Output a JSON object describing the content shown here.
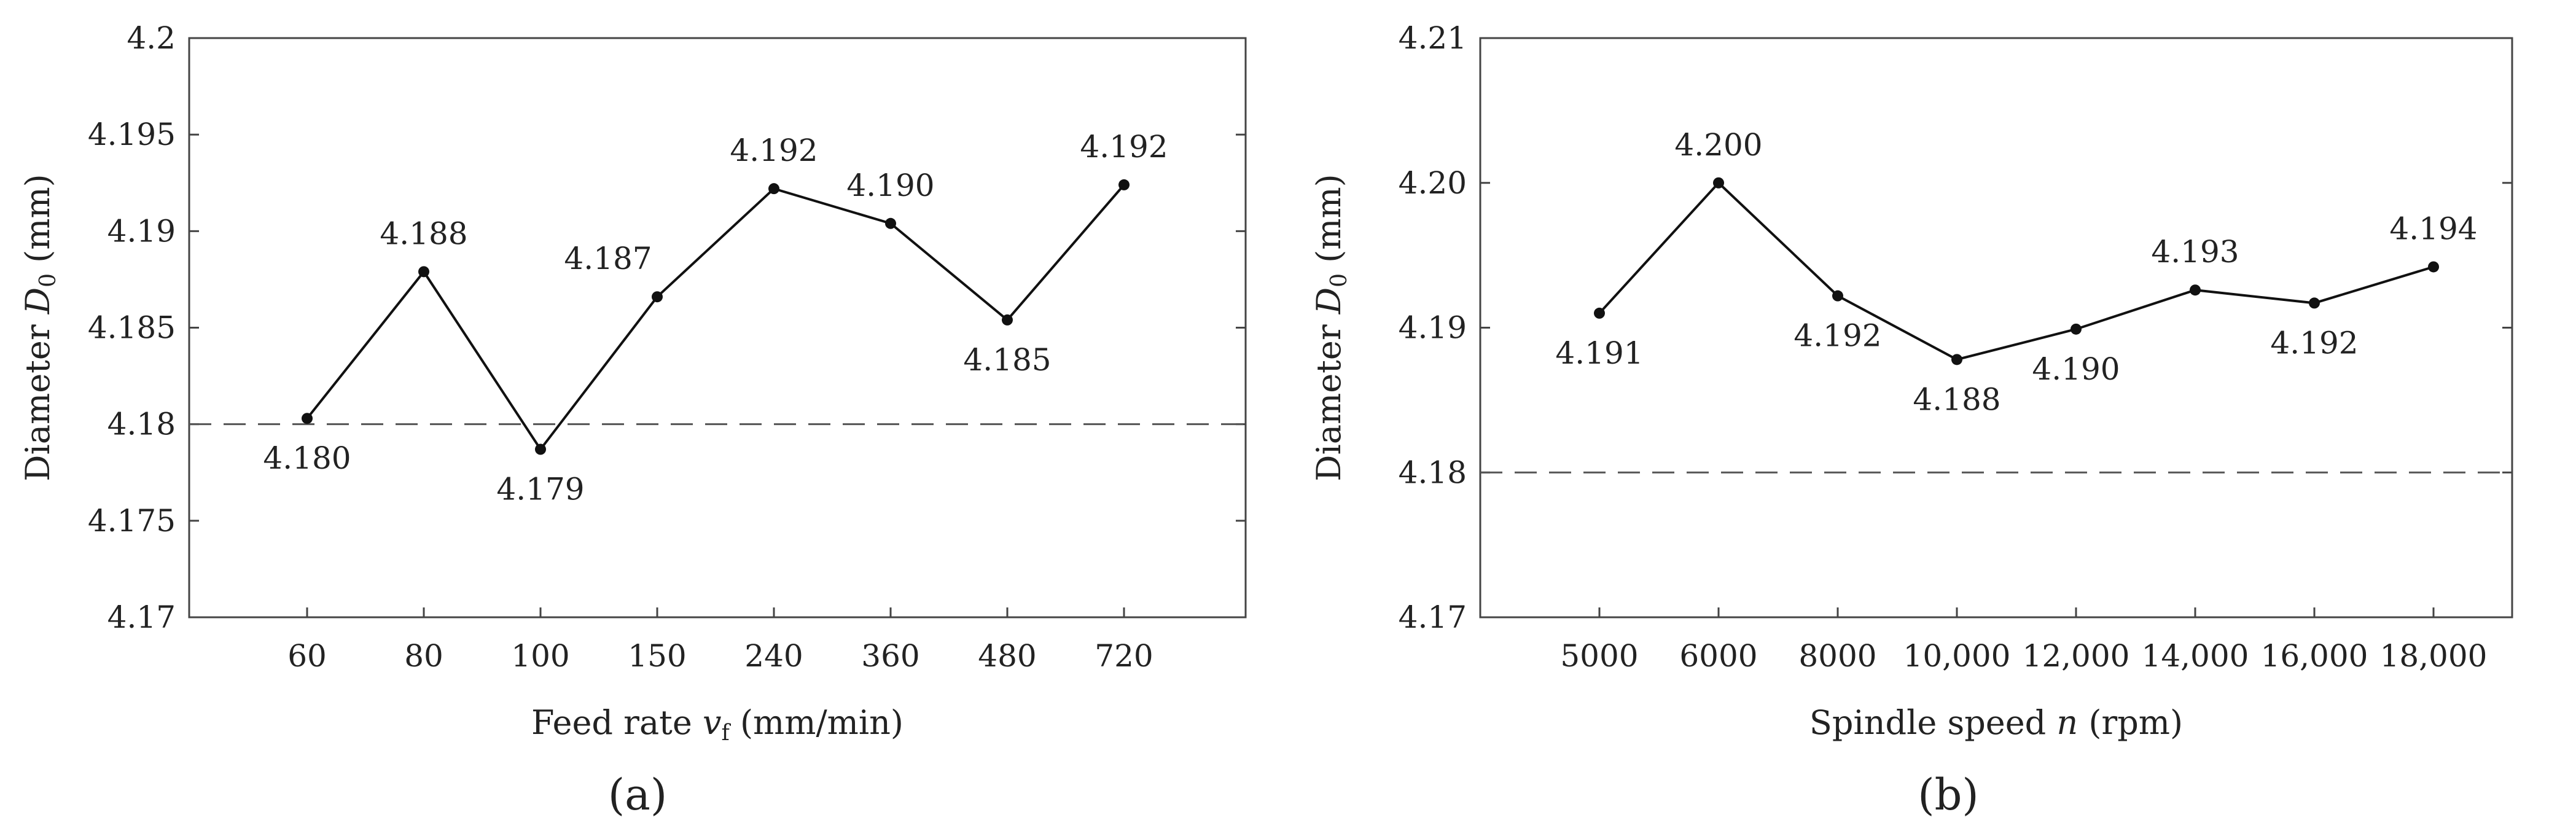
{
  "chart_data": [
    {
      "type": "line",
      "panel_label": "(a)",
      "xlabel": "Feed rate vₑ (mm/min)",
      "xlabel_parts": {
        "pre": "Feed rate ",
        "var": "v",
        "sub": "f",
        "post": " (mm/min)"
      },
      "ylabel_parts": {
        "pre": "Diameter ",
        "var": "D",
        "sub": "0",
        "post": " (mm)"
      },
      "categories": [
        "60",
        "80",
        "100",
        "150",
        "240",
        "360",
        "480",
        "720"
      ],
      "values": [
        4.1803,
        4.1879,
        4.1787,
        4.1866,
        4.1922,
        4.1904,
        4.1854,
        4.1924
      ],
      "data_labels": [
        "4.180",
        "4.188",
        "4.179",
        "4.187",
        "4.192",
        "4.190",
        "4.185",
        "4.192"
      ],
      "label_position": [
        "below",
        "above",
        "below",
        "above-left",
        "above",
        "above",
        "below",
        "above"
      ],
      "ylim": [
        4.17,
        4.2
      ],
      "yticks": [
        "4.17",
        "4.175",
        "4.18",
        "4.185",
        "4.19",
        "4.195",
        "4.2"
      ],
      "reference_line": 4.18,
      "reference_style": "dashed",
      "grid": false,
      "colors": {
        "line": "#111111",
        "reference": "#555555",
        "axis": "#444444"
      }
    },
    {
      "type": "line",
      "panel_label": "(b)",
      "xlabel_parts": {
        "pre": "Spindle speed ",
        "var": "n",
        "sub": "",
        "post": " (rpm)"
      },
      "ylabel_parts": {
        "pre": "Diameter ",
        "var": "D",
        "sub": "0",
        "post": " (mm)"
      },
      "categories": [
        "5000",
        "6000",
        "8000",
        "10,000",
        "12,000",
        "14,000",
        "16,000",
        "18,000"
      ],
      "values": [
        4.191,
        4.2,
        4.1922,
        4.1878,
        4.1899,
        4.1926,
        4.1917,
        4.1942
      ],
      "data_labels": [
        "4.191",
        "4.200",
        "4.192",
        "4.188",
        "4.190",
        "4.193",
        "4.192",
        "4.194"
      ],
      "label_position": [
        "below",
        "above",
        "below",
        "below",
        "below",
        "above",
        "below",
        "above"
      ],
      "ylim": [
        4.17,
        4.21
      ],
      "yticks": [
        "4.17",
        "4.18",
        "4.19",
        "4.20",
        "4.21"
      ],
      "reference_line": 4.18,
      "reference_style": "dashed",
      "grid": false,
      "colors": {
        "line": "#111111",
        "reference": "#555555",
        "axis": "#444444"
      }
    }
  ]
}
